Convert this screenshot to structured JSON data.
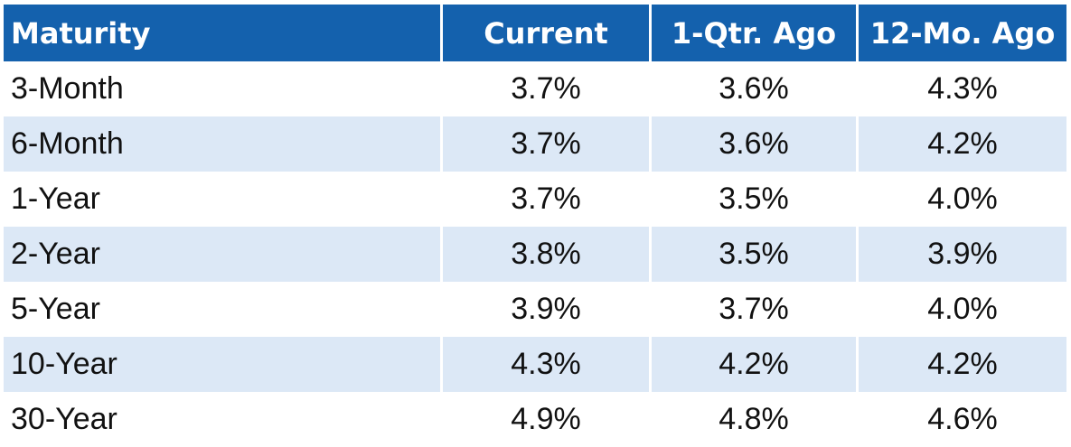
{
  "table": {
    "headers": [
      "Maturity",
      "Current",
      "1-Qtr. Ago",
      "12-Mo. Ago"
    ],
    "rows": [
      [
        "3-Month",
        "3.7%",
        "3.6%",
        "4.3%"
      ],
      [
        "6-Month",
        "3.7%",
        "3.6%",
        "4.2%"
      ],
      [
        "1-Year",
        "3.7%",
        "3.5%",
        "4.0%"
      ],
      [
        "2-Year",
        "3.8%",
        "3.5%",
        "3.9%"
      ],
      [
        "5-Year",
        "3.9%",
        "3.7%",
        "4.0%"
      ],
      [
        "10-Year",
        "4.3%",
        "4.2%",
        "4.2%"
      ],
      [
        "30-Year",
        "4.9%",
        "4.8%",
        "4.6%"
      ]
    ]
  },
  "colors": {
    "header_bg": "#1461ad",
    "header_text": "#ffffff",
    "stripe_bg": "#dce8f6",
    "row_bg": "#ffffff",
    "cell_text": "#111111"
  }
}
